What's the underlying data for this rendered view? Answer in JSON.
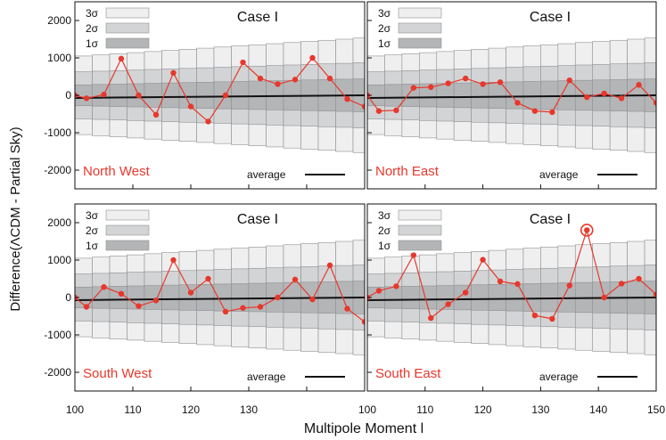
{
  "chart_data": {
    "type": "line",
    "ylabel": "Difference(ΛCDM - Partial Sky)",
    "xlabel": "Multipole Moment l",
    "xlim": [
      100,
      150
    ],
    "ylim": [
      -2500,
      2500
    ],
    "x_ticks": [
      100,
      110,
      120,
      130,
      140,
      150
    ],
    "y_ticks": [
      2000,
      1000,
      0,
      -1000,
      -2000
    ],
    "y_tick_labels": [
      "2000",
      "1000",
      "0",
      "-1000",
      "-2000"
    ],
    "legend": {
      "sigma_labels": [
        "3σ",
        "2σ",
        "1σ"
      ],
      "average_label": "average"
    },
    "colors": {
      "series": "#e8372c",
      "band1": "#b4b5b7",
      "band2": "#d3d4d5",
      "band3": "#efeff0",
      "average": "#111111"
    },
    "x": [
      100,
      102,
      105,
      108,
      111,
      114,
      117,
      120,
      123,
      126,
      129,
      132,
      135,
      138,
      141,
      144,
      147,
      150
    ],
    "sigma_x": [
      100,
      103,
      106,
      109,
      112,
      115,
      118,
      121,
      124,
      127,
      130,
      133,
      136,
      139,
      142,
      145,
      148
    ],
    "sigma_1": [
      280,
      290,
      300,
      310,
      320,
      330,
      340,
      350,
      360,
      370,
      380,
      390,
      400,
      410,
      420,
      430,
      440
    ],
    "sigma_2": [
      630,
      645,
      660,
      675,
      690,
      705,
      720,
      735,
      750,
      765,
      780,
      795,
      810,
      825,
      840,
      855,
      870
    ],
    "sigma_3": [
      1050,
      1080,
      1110,
      1140,
      1170,
      1200,
      1230,
      1260,
      1290,
      1320,
      1350,
      1380,
      1410,
      1440,
      1470,
      1500,
      1530
    ],
    "panels": [
      {
        "case": "Case I",
        "region": "North West",
        "values": [
          0,
          -80,
          20,
          980,
          0,
          -520,
          600,
          -300,
          -700,
          0,
          880,
          450,
          300,
          420,
          1000,
          450,
          -100,
          -300
        ],
        "average_start": -70,
        "average_end": 0
      },
      {
        "case": "Case I",
        "region": "North East",
        "values": [
          0,
          -420,
          -400,
          200,
          220,
          320,
          450,
          300,
          350,
          -200,
          -420,
          -450,
          400,
          -50,
          50,
          -80,
          280,
          -200
        ],
        "average_start": -70,
        "average_end": 0
      },
      {
        "case": "Case I",
        "region": "South West",
        "values": [
          0,
          -250,
          280,
          100,
          -230,
          -80,
          1000,
          130,
          500,
          -380,
          -280,
          -250,
          0,
          480,
          -50,
          860,
          -300,
          -650
        ],
        "average_start": -70,
        "average_end": 0
      },
      {
        "case": "Case I",
        "region": "South East",
        "values": [
          0,
          180,
          300,
          1130,
          -550,
          -180,
          130,
          1010,
          430,
          360,
          -480,
          -570,
          320,
          1800,
          0,
          370,
          500,
          80
        ],
        "average_start": -70,
        "average_end": 0,
        "highlight_x": 138
      }
    ]
  }
}
